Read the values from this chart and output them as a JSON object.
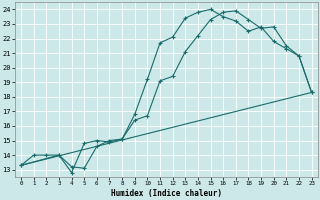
{
  "xlabel": "Humidex (Indice chaleur)",
  "bg_color": "#cce8e8",
  "grid_color": "#ffffff",
  "line_color": "#1a6b6b",
  "xlim": [
    -0.5,
    23.5
  ],
  "ylim": [
    12.5,
    24.5
  ],
  "xticks": [
    0,
    1,
    2,
    3,
    4,
    5,
    6,
    7,
    8,
    9,
    10,
    11,
    12,
    13,
    14,
    15,
    16,
    17,
    18,
    19,
    20,
    21,
    22,
    23
  ],
  "yticks": [
    13,
    14,
    15,
    16,
    17,
    18,
    19,
    20,
    21,
    22,
    23,
    24
  ],
  "line1_x": [
    0,
    1,
    2,
    3,
    4,
    5,
    6,
    7,
    8,
    9,
    10,
    11,
    12,
    13,
    14,
    15,
    16,
    17,
    18,
    19,
    20,
    21,
    22,
    23
  ],
  "line1_y": [
    13.3,
    14.0,
    14.0,
    14.0,
    12.8,
    14.8,
    15.0,
    14.9,
    15.1,
    16.4,
    16.7,
    19.1,
    19.4,
    21.1,
    22.2,
    23.3,
    23.8,
    23.9,
    23.3,
    22.7,
    22.8,
    21.5,
    20.8,
    18.3
  ],
  "line2_x": [
    0,
    3,
    4,
    5,
    6,
    7,
    8,
    9,
    10,
    11,
    12,
    13,
    14,
    15,
    16,
    17,
    18,
    19,
    20,
    21,
    22,
    23
  ],
  "line2_y": [
    13.3,
    14.0,
    13.2,
    13.1,
    14.6,
    15.0,
    15.1,
    16.8,
    19.2,
    21.7,
    22.1,
    23.4,
    23.8,
    24.0,
    23.5,
    23.2,
    22.5,
    22.8,
    21.8,
    21.3,
    20.8,
    18.3
  ],
  "line3_x": [
    0,
    23
  ],
  "line3_y": [
    13.3,
    18.3
  ]
}
